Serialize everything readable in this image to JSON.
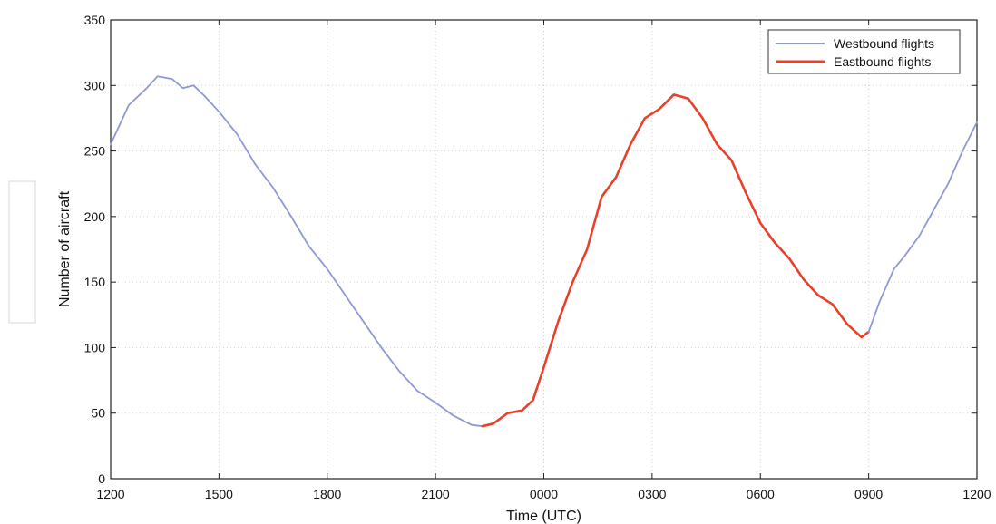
{
  "chart_data": {
    "type": "line",
    "xlabel": "Time (UTC)",
    "ylabel": "Number of aircraft",
    "xlim": [
      0,
      24
    ],
    "ylim": [
      0,
      350
    ],
    "x_ticks": [
      {
        "value": 0,
        "label": "1200"
      },
      {
        "value": 3,
        "label": "1500"
      },
      {
        "value": 6,
        "label": "1800"
      },
      {
        "value": 9,
        "label": "2100"
      },
      {
        "value": 12,
        "label": "0000"
      },
      {
        "value": 15,
        "label": "0300"
      },
      {
        "value": 18,
        "label": "0600"
      },
      {
        "value": 21,
        "label": "0900"
      },
      {
        "value": 24,
        "label": "1200"
      }
    ],
    "y_ticks": [
      0,
      50,
      100,
      150,
      200,
      250,
      300,
      350
    ],
    "grid": true,
    "legend_position": "top-right",
    "series": [
      {
        "name": "Westbound flights",
        "color": "#8f98d6",
        "x": [
          0,
          0.5,
          1,
          1.3,
          1.7,
          2.0,
          2.3,
          2.6,
          3.0,
          3.5,
          4.0,
          4.5,
          5.0,
          5.5,
          6.0,
          6.5,
          7.0,
          7.5,
          8.0,
          8.5,
          9.0,
          9.5,
          10.0,
          10.3
        ],
        "y": [
          255,
          285,
          298,
          307,
          305,
          298,
          300,
          292,
          280,
          263,
          240,
          222,
          200,
          177,
          160,
          140,
          120,
          100,
          82,
          67,
          58,
          48,
          41,
          40
        ]
      },
      {
        "name": "Eastbound flights",
        "color": "#e8412a",
        "x": [
          10.3,
          10.6,
          11.0,
          11.4,
          11.7,
          12.0,
          12.4,
          12.8,
          13.2,
          13.6,
          14.0,
          14.4,
          14.8,
          15.2,
          15.6,
          16.0,
          16.4,
          16.8,
          17.2,
          17.6,
          18.0,
          18.4,
          18.8,
          19.2,
          19.6,
          20.0,
          20.4,
          20.8,
          21.0
        ],
        "y": [
          40,
          42,
          50,
          52,
          60,
          85,
          120,
          150,
          175,
          215,
          230,
          255,
          275,
          282,
          293,
          290,
          275,
          255,
          243,
          218,
          195,
          180,
          168,
          152,
          140,
          133,
          118,
          108,
          112
        ]
      },
      {
        "name": "",
        "color": "#8f98d6",
        "x": [
          21.0,
          21.3,
          21.7,
          22.0,
          22.4,
          22.8,
          23.2,
          23.6,
          24.0
        ],
        "y": [
          112,
          135,
          160,
          170,
          185,
          205,
          225,
          250,
          272
        ]
      }
    ]
  }
}
